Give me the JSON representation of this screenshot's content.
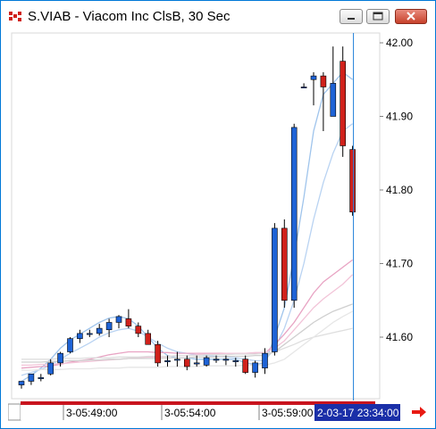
{
  "window": {
    "title": "S.VIAB - Viacom Inc ClsB, 30 Sec",
    "icons": [
      "app-icon",
      "minimize-icon",
      "restore-icon",
      "close-icon",
      "scroll-right-arrow-icon"
    ],
    "colors": {
      "up": "#1e63d6",
      "down": "#d0211b",
      "cursor": "#1e7fd8",
      "xaxis_accent": "#c8141e",
      "cursor_label_bg": "#1a2fa8"
    }
  },
  "chart_data": {
    "type": "candlestick",
    "title": "S.VIAB - Viacom Inc ClsB, 30 Sec",
    "y_ticks": [
      "42.00",
      "41.90",
      "41.80",
      "41.70",
      "41.60"
    ],
    "ylim": [
      41.54,
      42.015
    ],
    "x_ticks": [
      "3-05:49:00",
      "3-05:54:00",
      "3-05:59:00"
    ],
    "cursor_label": "2-03-17 23:34:00",
    "candles": [
      {
        "o": 41.535,
        "h": 41.54,
        "l": 41.53,
        "c": 41.54
      },
      {
        "o": 41.54,
        "h": 41.55,
        "l": 41.535,
        "c": 41.55
      },
      {
        "o": 41.545,
        "h": 41.55,
        "l": 41.54,
        "c": 41.545
      },
      {
        "o": 41.55,
        "h": 41.57,
        "l": 41.548,
        "c": 41.565
      },
      {
        "o": 41.565,
        "h": 41.58,
        "l": 41.56,
        "c": 41.578
      },
      {
        "o": 41.58,
        "h": 41.6,
        "l": 41.578,
        "c": 41.598
      },
      {
        "o": 41.598,
        "h": 41.61,
        "l": 41.592,
        "c": 41.605
      },
      {
        "o": 41.605,
        "h": 41.61,
        "l": 41.6,
        "c": 41.605
      },
      {
        "o": 41.605,
        "h": 41.618,
        "l": 41.602,
        "c": 41.612
      },
      {
        "o": 41.61,
        "h": 41.625,
        "l": 41.6,
        "c": 41.62
      },
      {
        "o": 41.62,
        "h": 41.63,
        "l": 41.612,
        "c": 41.628
      },
      {
        "o": 41.625,
        "h": 41.638,
        "l": 41.612,
        "c": 41.615
      },
      {
        "o": 41.615,
        "h": 41.62,
        "l": 41.6,
        "c": 41.605
      },
      {
        "o": 41.605,
        "h": 41.61,
        "l": 41.59,
        "c": 41.59
      },
      {
        "o": 41.59,
        "h": 41.595,
        "l": 41.56,
        "c": 41.565
      },
      {
        "o": 41.568,
        "h": 41.575,
        "l": 41.56,
        "c": 41.568
      },
      {
        "o": 41.57,
        "h": 41.58,
        "l": 41.56,
        "c": 41.57
      },
      {
        "o": 41.57,
        "h": 41.575,
        "l": 41.555,
        "c": 41.56
      },
      {
        "o": 41.565,
        "h": 41.575,
        "l": 41.56,
        "c": 41.565
      },
      {
        "o": 41.562,
        "h": 41.575,
        "l": 41.56,
        "c": 41.572
      },
      {
        "o": 41.57,
        "h": 41.575,
        "l": 41.565,
        "c": 41.57
      },
      {
        "o": 41.57,
        "h": 41.575,
        "l": 41.562,
        "c": 41.57
      },
      {
        "o": 41.568,
        "h": 41.572,
        "l": 41.56,
        "c": 41.568
      },
      {
        "o": 41.57,
        "h": 41.575,
        "l": 41.55,
        "c": 41.552
      },
      {
        "o": 41.552,
        "h": 41.568,
        "l": 41.545,
        "c": 41.565
      },
      {
        "o": 41.558,
        "h": 41.585,
        "l": 41.55,
        "c": 41.578
      },
      {
        "o": 41.58,
        "h": 41.755,
        "l": 41.575,
        "c": 41.748
      },
      {
        "o": 41.748,
        "h": 41.76,
        "l": 41.64,
        "c": 41.65
      },
      {
        "o": 41.65,
        "h": 41.89,
        "l": 41.64,
        "c": 41.885
      },
      {
        "o": 41.94,
        "h": 41.945,
        "l": 41.94,
        "c": 41.94
      },
      {
        "o": 41.95,
        "h": 41.96,
        "l": 41.915,
        "c": 41.955
      },
      {
        "o": 41.955,
        "h": 41.96,
        "l": 41.88,
        "c": 41.94
      },
      {
        "o": 41.9,
        "h": 41.995,
        "l": 41.9,
        "c": 41.945
      },
      {
        "o": 41.975,
        "h": 41.995,
        "l": 41.845,
        "c": 41.86
      },
      {
        "o": 41.855,
        "h": 41.86,
        "l": 41.765,
        "c": 41.77
      }
    ],
    "series": [
      {
        "name": "",
        "color": "#9fc4ec",
        "values": [
          41.54,
          41.548,
          41.558,
          41.57,
          41.585,
          41.596,
          41.604,
          41.612,
          41.62,
          41.626,
          41.628,
          41.625,
          41.615,
          41.6,
          41.585,
          41.575,
          41.572,
          41.572,
          41.57,
          41.57,
          41.57,
          41.57,
          41.57,
          41.565,
          41.563,
          41.565,
          41.6,
          41.64,
          41.71,
          41.79,
          41.88,
          41.93,
          41.945,
          41.96,
          41.95
        ]
      },
      {
        "name": "",
        "color": "#b9d3f2",
        "values": [
          41.548,
          41.552,
          41.556,
          41.562,
          41.57,
          41.578,
          41.585,
          41.592,
          41.6,
          41.606,
          41.61,
          41.612,
          41.608,
          41.6,
          41.592,
          41.585,
          41.58,
          41.578,
          41.576,
          41.575,
          41.574,
          41.573,
          41.572,
          41.57,
          41.568,
          41.568,
          41.585,
          41.612,
          41.65,
          41.7,
          41.76,
          41.81,
          41.85,
          41.88,
          41.89
        ]
      },
      {
        "name": "",
        "color": "#e8a3c3",
        "values": [
          41.558,
          41.559,
          41.56,
          41.561,
          41.563,
          41.566,
          41.568,
          41.57,
          41.573,
          41.576,
          41.578,
          41.58,
          41.58,
          41.58,
          41.579,
          41.579,
          41.578,
          41.578,
          41.578,
          41.578,
          41.578,
          41.578,
          41.578,
          41.578,
          41.578,
          41.578,
          41.59,
          41.604,
          41.62,
          41.64,
          41.66,
          41.675,
          41.685,
          41.695,
          41.705
        ]
      },
      {
        "name": "",
        "color": "#f2c4d8",
        "values": [
          41.562,
          41.562,
          41.563,
          41.563,
          41.564,
          41.565,
          41.566,
          41.567,
          41.568,
          41.569,
          41.57,
          41.571,
          41.572,
          41.573,
          41.573,
          41.574,
          41.575,
          41.575,
          41.576,
          41.577,
          41.577,
          41.578,
          41.578,
          41.578,
          41.579,
          41.579,
          41.585,
          41.595,
          41.61,
          41.625,
          41.64,
          41.652,
          41.662,
          41.672,
          41.685
        ]
      },
      {
        "name": "",
        "color": "#cfcfcf",
        "values": [
          41.566,
          41.566,
          41.566,
          41.567,
          41.567,
          41.568,
          41.568,
          41.569,
          41.569,
          41.57,
          41.57,
          41.571,
          41.571,
          41.571,
          41.571,
          41.572,
          41.572,
          41.572,
          41.573,
          41.573,
          41.573,
          41.574,
          41.574,
          41.574,
          41.575,
          41.575,
          41.58,
          41.59,
          41.6,
          41.61,
          41.62,
          41.628,
          41.635,
          41.64,
          41.645
        ]
      },
      {
        "name": "",
        "color": "#dedede",
        "values": [
          41.57,
          41.57,
          41.57,
          41.57,
          41.571,
          41.571,
          41.571,
          41.572,
          41.572,
          41.572,
          41.573,
          41.573,
          41.573,
          41.574,
          41.574,
          41.574,
          41.575,
          41.575,
          41.575,
          41.576,
          41.576,
          41.576,
          41.577,
          41.577,
          41.577,
          41.578,
          41.58,
          41.585,
          41.59,
          41.596,
          41.6,
          41.603,
          41.606,
          41.609,
          41.612
        ]
      },
      {
        "name": "",
        "color": "#e6e6e6",
        "values": [
          41.555,
          41.555,
          41.556,
          41.556,
          41.556,
          41.557,
          41.557,
          41.557,
          41.558,
          41.558,
          41.558,
          41.559,
          41.559,
          41.559,
          41.559,
          41.56,
          41.56,
          41.56,
          41.56,
          41.561,
          41.561,
          41.561,
          41.561,
          41.562,
          41.562,
          41.562,
          41.565,
          41.57,
          41.58,
          41.59,
          41.6,
          41.61,
          41.62,
          41.628,
          41.635
        ]
      }
    ]
  }
}
